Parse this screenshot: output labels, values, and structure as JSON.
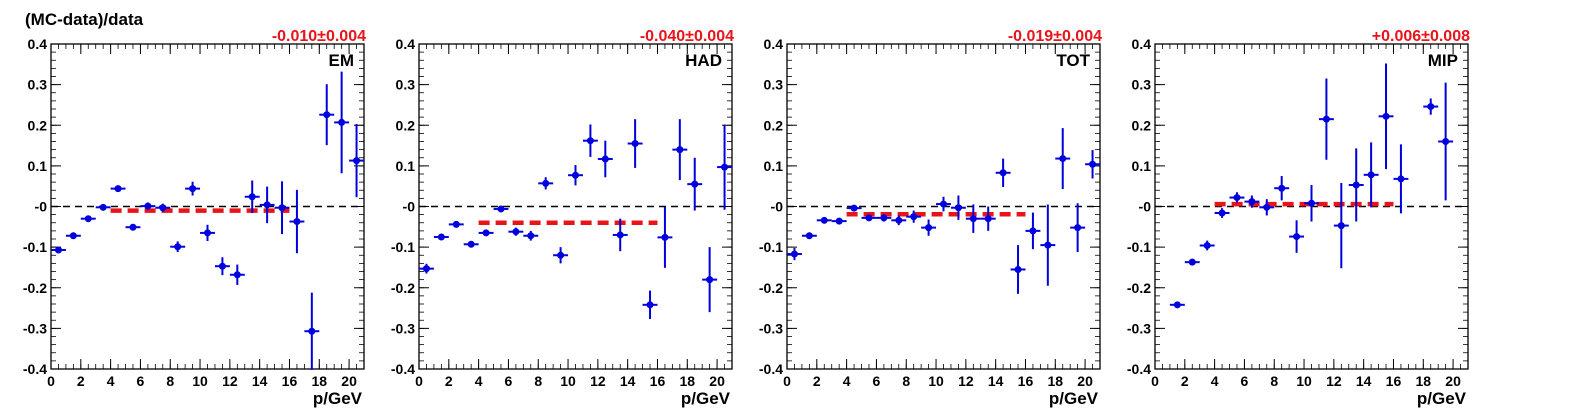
{
  "figure": {
    "y_title": "(MC-data)/data",
    "x_title": "p/GeV",
    "colors": {
      "data": "#0000dd",
      "fit": "#e8141a",
      "zero_line": "#000000",
      "frame": "#000000"
    }
  },
  "chart_data": [
    {
      "type": "scatter",
      "name": "EM",
      "fit_label": "-0.010±0.004",
      "fit": {
        "value": -0.01,
        "x_range": [
          4,
          16
        ]
      },
      "xlim": [
        0,
        21
      ],
      "ylim": [
        -0.4,
        0.4
      ],
      "x_ticks": [
        "0",
        "2",
        "4",
        "6",
        "8",
        "10",
        "12",
        "14",
        "16",
        "18",
        "20"
      ],
      "y_ticks": [
        "-0.4",
        "-0.3",
        "-0.2",
        "-0.1",
        "-0",
        "0.1",
        "0.2",
        "0.3",
        "0.4"
      ],
      "grid": false,
      "points": [
        {
          "x": 0.5,
          "y": -0.107,
          "yerr": 0.006
        },
        {
          "x": 1.5,
          "y": -0.072,
          "yerr": 0.006
        },
        {
          "x": 2.5,
          "y": -0.03,
          "yerr": 0.007
        },
        {
          "x": 3.5,
          "y": -0.002,
          "yerr": 0.006
        },
        {
          "x": 4.5,
          "y": 0.044,
          "yerr": 0.007
        },
        {
          "x": 5.5,
          "y": -0.051,
          "yerr": 0.008
        },
        {
          "x": 6.5,
          "y": 0.001,
          "yerr": 0.009
        },
        {
          "x": 7.5,
          "y": -0.003,
          "yerr": 0.01
        },
        {
          "x": 8.5,
          "y": -0.099,
          "yerr": 0.013
        },
        {
          "x": 9.5,
          "y": 0.044,
          "yerr": 0.017
        },
        {
          "x": 10.5,
          "y": -0.065,
          "yerr": 0.02
        },
        {
          "x": 11.5,
          "y": -0.147,
          "yerr": 0.022
        },
        {
          "x": 12.5,
          "y": -0.168,
          "yerr": 0.025
        },
        {
          "x": 13.5,
          "y": 0.024,
          "yerr": 0.04
        },
        {
          "x": 14.5,
          "y": 0.004,
          "yerr": 0.045
        },
        {
          "x": 15.5,
          "y": -0.003,
          "yerr": 0.065
        },
        {
          "x": 16.5,
          "y": -0.037,
          "yerr": 0.078
        },
        {
          "x": 17.5,
          "y": -0.307,
          "yerr": 0.095
        },
        {
          "x": 18.5,
          "y": 0.226,
          "yerr": 0.075
        },
        {
          "x": 19.5,
          "y": 0.207,
          "yerr": 0.125
        },
        {
          "x": 20.5,
          "y": 0.113,
          "yerr": 0.09
        }
      ]
    },
    {
      "type": "scatter",
      "name": "HAD",
      "fit_label": "-0.040±0.004",
      "fit": {
        "value": -0.04,
        "x_range": [
          4,
          16
        ]
      },
      "xlim": [
        0,
        21
      ],
      "ylim": [
        -0.4,
        0.4
      ],
      "x_ticks": [
        "0",
        "2",
        "4",
        "6",
        "8",
        "10",
        "12",
        "14",
        "16",
        "18",
        "20"
      ],
      "y_ticks": [
        "-0.4",
        "-0.3",
        "-0.2",
        "-0.1",
        "-0",
        "0.1",
        "0.2",
        "0.3",
        "0.4"
      ],
      "grid": false,
      "points": [
        {
          "x": 0.5,
          "y": -0.153,
          "yerr": 0.012
        },
        {
          "x": 1.5,
          "y": -0.075,
          "yerr": 0.007
        },
        {
          "x": 2.5,
          "y": -0.044,
          "yerr": 0.006
        },
        {
          "x": 3.5,
          "y": -0.093,
          "yerr": 0.007
        },
        {
          "x": 4.5,
          "y": -0.065,
          "yerr": 0.007
        },
        {
          "x": 5.5,
          "y": -0.006,
          "yerr": 0.008
        },
        {
          "x": 6.5,
          "y": -0.062,
          "yerr": 0.01
        },
        {
          "x": 7.5,
          "y": -0.072,
          "yerr": 0.012
        },
        {
          "x": 8.5,
          "y": 0.057,
          "yerr": 0.015
        },
        {
          "x": 9.5,
          "y": -0.12,
          "yerr": 0.02
        },
        {
          "x": 10.5,
          "y": 0.077,
          "yerr": 0.025
        },
        {
          "x": 11.5,
          "y": 0.162,
          "yerr": 0.04
        },
        {
          "x": 12.5,
          "y": 0.117,
          "yerr": 0.045
        },
        {
          "x": 13.5,
          "y": -0.07,
          "yerr": 0.04
        },
        {
          "x": 14.5,
          "y": 0.155,
          "yerr": 0.06
        },
        {
          "x": 15.5,
          "y": -0.242,
          "yerr": 0.035
        },
        {
          "x": 16.5,
          "y": -0.076,
          "yerr": 0.075
        },
        {
          "x": 17.5,
          "y": 0.14,
          "yerr": 0.075
        },
        {
          "x": 18.5,
          "y": 0.055,
          "yerr": 0.065
        },
        {
          "x": 19.5,
          "y": -0.18,
          "yerr": 0.08
        },
        {
          "x": 20.5,
          "y": 0.097,
          "yerr": 0.105
        }
      ]
    },
    {
      "type": "scatter",
      "name": "TOT",
      "fit_label": "-0.019±0.004",
      "fit": {
        "value": -0.019,
        "x_range": [
          4,
          16
        ]
      },
      "xlim": [
        0,
        21
      ],
      "ylim": [
        -0.4,
        0.4
      ],
      "x_ticks": [
        "0",
        "2",
        "4",
        "6",
        "8",
        "10",
        "12",
        "14",
        "16",
        "18",
        "20"
      ],
      "y_ticks": [
        "-0.4",
        "-0.3",
        "-0.2",
        "-0.1",
        "-0",
        "0.1",
        "0.2",
        "0.3",
        "0.4"
      ],
      "grid": false,
      "points": [
        {
          "x": 0.5,
          "y": -0.117,
          "yerr": 0.015
        },
        {
          "x": 1.5,
          "y": -0.072,
          "yerr": 0.008
        },
        {
          "x": 2.5,
          "y": -0.034,
          "yerr": 0.006
        },
        {
          "x": 3.5,
          "y": -0.036,
          "yerr": 0.006
        },
        {
          "x": 4.5,
          "y": -0.004,
          "yerr": 0.006
        },
        {
          "x": 5.5,
          "y": -0.028,
          "yerr": 0.007
        },
        {
          "x": 6.5,
          "y": -0.028,
          "yerr": 0.009
        },
        {
          "x": 7.5,
          "y": -0.034,
          "yerr": 0.012
        },
        {
          "x": 8.5,
          "y": -0.025,
          "yerr": 0.015
        },
        {
          "x": 9.5,
          "y": -0.052,
          "yerr": 0.02
        },
        {
          "x": 10.5,
          "y": 0.006,
          "yerr": 0.018
        },
        {
          "x": 11.5,
          "y": -0.003,
          "yerr": 0.03
        },
        {
          "x": 12.5,
          "y": -0.03,
          "yerr": 0.035
        },
        {
          "x": 13.5,
          "y": -0.03,
          "yerr": 0.03
        },
        {
          "x": 14.5,
          "y": 0.083,
          "yerr": 0.035
        },
        {
          "x": 15.5,
          "y": -0.155,
          "yerr": 0.06
        },
        {
          "x": 16.5,
          "y": -0.06,
          "yerr": 0.045
        },
        {
          "x": 17.5,
          "y": -0.095,
          "yerr": 0.1
        },
        {
          "x": 18.5,
          "y": 0.118,
          "yerr": 0.075
        },
        {
          "x": 19.5,
          "y": -0.052,
          "yerr": 0.06
        },
        {
          "x": 20.5,
          "y": 0.104,
          "yerr": 0.035
        }
      ]
    },
    {
      "type": "scatter",
      "name": "MIP",
      "fit_label": "+0.006±0.008",
      "fit": {
        "value": 0.006,
        "x_range": [
          4,
          16
        ]
      },
      "xlim": [
        0,
        21
      ],
      "ylim": [
        -0.4,
        0.4
      ],
      "x_ticks": [
        "0",
        "2",
        "4",
        "6",
        "8",
        "10",
        "12",
        "14",
        "16",
        "18",
        "20"
      ],
      "y_ticks": [
        "-0.4",
        "-0.3",
        "-0.2",
        "-0.1",
        "-0",
        "0.1",
        "0.2",
        "0.3",
        "0.4"
      ],
      "grid": false,
      "points": [
        {
          "x": 1.5,
          "y": -0.242,
          "yerr": 0.008
        },
        {
          "x": 2.5,
          "y": -0.137,
          "yerr": 0.008
        },
        {
          "x": 3.5,
          "y": -0.096,
          "yerr": 0.012
        },
        {
          "x": 4.5,
          "y": -0.016,
          "yerr": 0.012
        },
        {
          "x": 5.5,
          "y": 0.022,
          "yerr": 0.013
        },
        {
          "x": 6.5,
          "y": 0.012,
          "yerr": 0.015
        },
        {
          "x": 7.5,
          "y": -0.002,
          "yerr": 0.02
        },
        {
          "x": 8.5,
          "y": 0.045,
          "yerr": 0.03
        },
        {
          "x": 9.5,
          "y": -0.074,
          "yerr": 0.04
        },
        {
          "x": 10.5,
          "y": 0.008,
          "yerr": 0.045
        },
        {
          "x": 11.5,
          "y": 0.215,
          "yerr": 0.1
        },
        {
          "x": 12.5,
          "y": -0.047,
          "yerr": 0.105
        },
        {
          "x": 13.5,
          "y": 0.053,
          "yerr": 0.09
        },
        {
          "x": 14.5,
          "y": 0.078,
          "yerr": 0.08
        },
        {
          "x": 15.5,
          "y": 0.222,
          "yerr": 0.13
        },
        {
          "x": 16.5,
          "y": 0.068,
          "yerr": 0.085
        },
        {
          "x": 18.5,
          "y": 0.246,
          "yerr": 0.02
        },
        {
          "x": 19.5,
          "y": 0.16,
          "yerr": 0.145
        }
      ]
    }
  ]
}
